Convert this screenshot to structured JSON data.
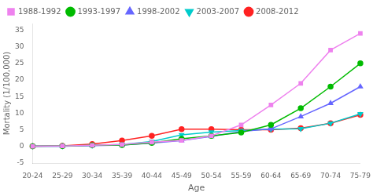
{
  "chart_data": {
    "type": "line",
    "xlabel": "Age",
    "ylabel": "Mortality (1/100,000)",
    "categories": [
      "20-24",
      "25-29",
      "30-34",
      "35-39",
      "40-44",
      "45-49",
      "50-54",
      "55-59",
      "60-64",
      "65-69",
      "70-74",
      "75-79"
    ],
    "series": [
      {
        "name": "1988-1992",
        "color": "#EE82EE",
        "marker": "square",
        "values": [
          0.05,
          0.15,
          0.35,
          0.6,
          1.3,
          1.8,
          3.2,
          6.5,
          12.5,
          19.0,
          29.0,
          34.0
        ]
      },
      {
        "name": "1993-1997",
        "color": "#00BB00",
        "marker": "circle",
        "values": [
          0.05,
          0.15,
          0.35,
          0.4,
          1.1,
          2.3,
          3.2,
          4.2,
          6.5,
          11.5,
          18.0,
          25.0
        ]
      },
      {
        "name": "1998-2002",
        "color": "#6666FF",
        "marker": "triangle_up",
        "values": [
          0.05,
          0.1,
          0.25,
          0.4,
          1.0,
          1.8,
          3.0,
          4.5,
          5.3,
          9.0,
          13.0,
          18.0
        ]
      },
      {
        "name": "2003-2007",
        "color": "#00CCCC",
        "marker": "triangle_down",
        "values": [
          0.05,
          0.1,
          0.3,
          0.6,
          1.5,
          3.5,
          4.3,
          4.8,
          5.2,
          5.3,
          7.0,
          9.8
        ]
      },
      {
        "name": "2008-2012",
        "color": "#FF2222",
        "marker": "circle",
        "values": [
          0.1,
          0.2,
          0.7,
          1.8,
          3.2,
          5.2,
          5.2,
          5.0,
          5.0,
          5.5,
          7.0,
          9.5
        ]
      }
    ],
    "ylim": [
      -5,
      37
    ],
    "yticks": [
      -5,
      0,
      5,
      10,
      15,
      20,
      25,
      30,
      35
    ],
    "grid": false,
    "legend": "upper left"
  }
}
